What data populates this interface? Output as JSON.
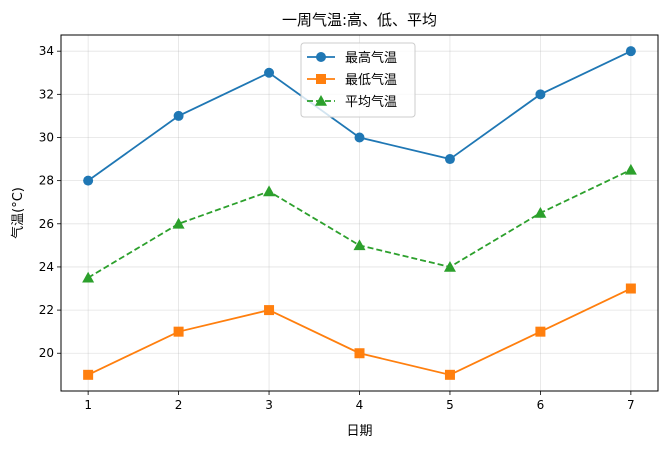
{
  "chart_data": {
    "type": "line",
    "title": "一周气温:高、低、平均",
    "xlabel": "日期",
    "ylabel": "气温(°C)",
    "x": [
      1,
      2,
      3,
      4,
      5,
      6,
      7
    ],
    "xlim": [
      0.7,
      7.3
    ],
    "ylim": [
      18.25,
      34.75
    ],
    "yticks": [
      20,
      22,
      24,
      26,
      28,
      30,
      32,
      34
    ],
    "grid": true,
    "legend_position": "top-center",
    "series": [
      {
        "name": "最高气温",
        "values": [
          28,
          31,
          33,
          30,
          29,
          32,
          34
        ],
        "color": "#1f77b4",
        "marker": "circle",
        "linestyle": "solid"
      },
      {
        "name": "最低气温",
        "values": [
          19,
          21,
          22,
          20,
          19,
          21,
          23
        ],
        "color": "#ff7f0e",
        "marker": "square",
        "linestyle": "solid"
      },
      {
        "name": "平均气温",
        "values": [
          23.5,
          26,
          27.5,
          25,
          24,
          26.5,
          28.5
        ],
        "color": "#2ca02c",
        "marker": "triangle",
        "linestyle": "dashed"
      }
    ]
  }
}
